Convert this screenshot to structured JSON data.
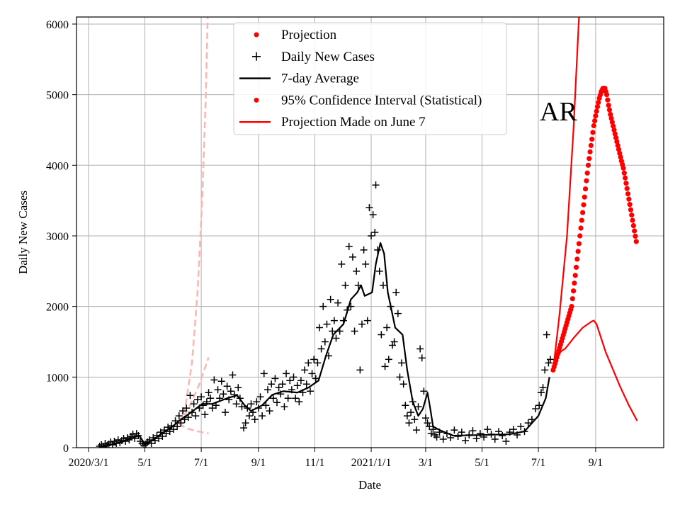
{
  "chart_data": {
    "type": "line",
    "title": "",
    "annotation": "AR",
    "xlabel": "Date",
    "ylabel": "Daily New Cases",
    "x_unit": "days since 2020/3/1",
    "xlim": [
      -13,
      623
    ],
    "ylim": [
      0,
      6100
    ],
    "grid": true,
    "legend_placement": "top-center",
    "x_ticks": [
      {
        "day": 0,
        "label": "2020/3/1"
      },
      {
        "day": 61,
        "label": "5/1"
      },
      {
        "day": 122,
        "label": "7/1"
      },
      {
        "day": 184,
        "label": "9/1"
      },
      {
        "day": 245,
        "label": "11/1"
      },
      {
        "day": 306,
        "label": "2021/1/1"
      },
      {
        "day": 365,
        "label": "3/1"
      },
      {
        "day": 426,
        "label": "5/1"
      },
      {
        "day": 487,
        "label": "7/1"
      },
      {
        "day": 549,
        "label": "9/1"
      }
    ],
    "y_ticks": [
      0,
      1000,
      2000,
      3000,
      4000,
      5000,
      6000
    ],
    "legend": [
      {
        "label": "Projection",
        "marker": "dot",
        "color": "#ff0000"
      },
      {
        "label": "Daily New Cases",
        "marker": "plus",
        "color": "#000000"
      },
      {
        "label": "7-day Average",
        "marker": "line",
        "color": "#000000"
      },
      {
        "label": "95% Confidence Interval (Statistical)",
        "marker": "dot",
        "color": "#ff0000"
      },
      {
        "label": "Projection Made on June 7",
        "marker": "line",
        "color": "#ff0000"
      }
    ],
    "series": {
      "daily_new_cases": [
        [
          12,
          20
        ],
        [
          14,
          40
        ],
        [
          16,
          10
        ],
        [
          18,
          60
        ],
        [
          20,
          30
        ],
        [
          22,
          50
        ],
        [
          24,
          80
        ],
        [
          26,
          40
        ],
        [
          28,
          90
        ],
        [
          30,
          60
        ],
        [
          32,
          110
        ],
        [
          34,
          70
        ],
        [
          36,
          100
        ],
        [
          38,
          130
        ],
        [
          40,
          90
        ],
        [
          42,
          140
        ],
        [
          44,
          110
        ],
        [
          46,
          160
        ],
        [
          48,
          190
        ],
        [
          50,
          130
        ],
        [
          52,
          200
        ],
        [
          54,
          170
        ],
        [
          56,
          90
        ],
        [
          58,
          60
        ],
        [
          60,
          30
        ],
        [
          62,
          50
        ],
        [
          64,
          80
        ],
        [
          66,
          110
        ],
        [
          68,
          60
        ],
        [
          70,
          140
        ],
        [
          72,
          100
        ],
        [
          74,
          170
        ],
        [
          76,
          130
        ],
        [
          78,
          220
        ],
        [
          80,
          160
        ],
        [
          82,
          250
        ],
        [
          84,
          200
        ],
        [
          86,
          290
        ],
        [
          88,
          230
        ],
        [
          90,
          310
        ],
        [
          92,
          260
        ],
        [
          94,
          380
        ],
        [
          96,
          300
        ],
        [
          98,
          450
        ],
        [
          100,
          350
        ],
        [
          102,
          520
        ],
        [
          104,
          400
        ],
        [
          106,
          560
        ],
        [
          108,
          430
        ],
        [
          110,
          740
        ],
        [
          112,
          500
        ],
        [
          114,
          620
        ],
        [
          116,
          450
        ],
        [
          118,
          680
        ],
        [
          120,
          560
        ],
        [
          122,
          720
        ],
        [
          124,
          600
        ],
        [
          126,
          470
        ],
        [
          128,
          650
        ],
        [
          130,
          780
        ],
        [
          132,
          700
        ],
        [
          134,
          560
        ],
        [
          136,
          960
        ],
        [
          138,
          600
        ],
        [
          140,
          820
        ],
        [
          142,
          700
        ],
        [
          144,
          940
        ],
        [
          146,
          760
        ],
        [
          148,
          500
        ],
        [
          150,
          870
        ],
        [
          152,
          680
        ],
        [
          154,
          800
        ],
        [
          156,
          1030
        ],
        [
          158,
          750
        ],
        [
          160,
          620
        ],
        [
          162,
          850
        ],
        [
          164,
          700
        ],
        [
          166,
          580
        ],
        [
          168,
          280
        ],
        [
          170,
          350
        ],
        [
          172,
          560
        ],
        [
          174,
          450
        ],
        [
          176,
          620
        ],
        [
          178,
          500
        ],
        [
          180,
          400
        ],
        [
          182,
          650
        ],
        [
          184,
          560
        ],
        [
          186,
          720
        ],
        [
          188,
          450
        ],
        [
          190,
          1050
        ],
        [
          192,
          600
        ],
        [
          194,
          820
        ],
        [
          196,
          520
        ],
        [
          198,
          900
        ],
        [
          200,
          700
        ],
        [
          202,
          980
        ],
        [
          204,
          640
        ],
        [
          206,
          850
        ],
        [
          208,
          760
        ],
        [
          210,
          900
        ],
        [
          212,
          580
        ],
        [
          214,
          1050
        ],
        [
          216,
          700
        ],
        [
          218,
          950
        ],
        [
          220,
          820
        ],
        [
          222,
          1000
        ],
        [
          224,
          700
        ],
        [
          226,
          880
        ],
        [
          228,
          650
        ],
        [
          230,
          950
        ],
        [
          232,
          780
        ],
        [
          234,
          1100
        ],
        [
          236,
          900
        ],
        [
          238,
          1200
        ],
        [
          240,
          800
        ],
        [
          242,
          1050
        ],
        [
          244,
          1250
        ],
        [
          246,
          980
        ],
        [
          248,
          1200
        ],
        [
          250,
          1700
        ],
        [
          252,
          1400
        ],
        [
          254,
          2000
        ],
        [
          256,
          1500
        ],
        [
          258,
          1750
        ],
        [
          260,
          1300
        ],
        [
          262,
          2100
        ],
        [
          264,
          1650
        ],
        [
          266,
          1800
        ],
        [
          268,
          1550
        ],
        [
          270,
          2050
        ],
        [
          272,
          1650
        ],
        [
          274,
          2600
        ],
        [
          276,
          1800
        ],
        [
          278,
          2300
        ],
        [
          280,
          1950
        ],
        [
          282,
          2850
        ],
        [
          284,
          2000
        ],
        [
          286,
          2700
        ],
        [
          288,
          1650
        ],
        [
          290,
          2500
        ],
        [
          292,
          2300
        ],
        [
          294,
          1100
        ],
        [
          296,
          1750
        ],
        [
          298,
          2800
        ],
        [
          300,
          2600
        ],
        [
          302,
          1800
        ],
        [
          304,
          3400
        ],
        [
          306,
          3000
        ],
        [
          308,
          3300
        ],
        [
          310,
          3050
        ],
        [
          311,
          3720
        ],
        [
          313,
          2800
        ],
        [
          315,
          2500
        ],
        [
          317,
          1600
        ],
        [
          319,
          2300
        ],
        [
          321,
          1150
        ],
        [
          323,
          1700
        ],
        [
          325,
          1250
        ],
        [
          327,
          2000
        ],
        [
          329,
          1450
        ],
        [
          331,
          1500
        ],
        [
          333,
          2200
        ],
        [
          335,
          1900
        ],
        [
          337,
          1000
        ],
        [
          339,
          1200
        ],
        [
          341,
          900
        ],
        [
          343,
          600
        ],
        [
          345,
          450
        ],
        [
          347,
          350
        ],
        [
          349,
          500
        ],
        [
          351,
          650
        ],
        [
          353,
          400
        ],
        [
          355,
          250
        ],
        [
          357,
          580
        ],
        [
          359,
          1400
        ],
        [
          361,
          1270
        ],
        [
          363,
          800
        ],
        [
          365,
          420
        ],
        [
          367,
          350
        ],
        [
          369,
          300
        ],
        [
          371,
          200
        ],
        [
          373,
          260
        ],
        [
          375,
          180
        ],
        [
          377,
          150
        ],
        [
          380,
          220
        ],
        [
          384,
          120
        ],
        [
          388,
          200
        ],
        [
          392,
          140
        ],
        [
          396,
          250
        ],
        [
          400,
          160
        ],
        [
          404,
          220
        ],
        [
          408,
          100
        ],
        [
          412,
          180
        ],
        [
          416,
          240
        ],
        [
          420,
          130
        ],
        [
          424,
          200
        ],
        [
          428,
          150
        ],
        [
          432,
          260
        ],
        [
          436,
          190
        ],
        [
          440,
          120
        ],
        [
          444,
          230
        ],
        [
          448,
          170
        ],
        [
          452,
          90
        ],
        [
          456,
          220
        ],
        [
          460,
          260
        ],
        [
          464,
          180
        ],
        [
          468,
          300
        ],
        [
          472,
          230
        ],
        [
          476,
          350
        ],
        [
          480,
          400
        ],
        [
          484,
          550
        ],
        [
          488,
          600
        ],
        [
          490,
          780
        ],
        [
          492,
          850
        ],
        [
          494,
          1100
        ],
        [
          496,
          1600
        ],
        [
          498,
          1200
        ],
        [
          500,
          1250
        ]
      ],
      "seven_day_average": [
        [
          11,
          0
        ],
        [
          30,
          60
        ],
        [
          50,
          150
        ],
        [
          55,
          170
        ],
        [
          61,
          50
        ],
        [
          70,
          110
        ],
        [
          79,
          200
        ],
        [
          90,
          290
        ],
        [
          100,
          400
        ],
        [
          111,
          500
        ],
        [
          123,
          620
        ],
        [
          134,
          620
        ],
        [
          150,
          700
        ],
        [
          161,
          740
        ],
        [
          169,
          600
        ],
        [
          176,
          520
        ],
        [
          188,
          600
        ],
        [
          199,
          750
        ],
        [
          211,
          800
        ],
        [
          226,
          780
        ],
        [
          238,
          850
        ],
        [
          249,
          950
        ],
        [
          257,
          1300
        ],
        [
          265,
          1600
        ],
        [
          276,
          1750
        ],
        [
          284,
          2100
        ],
        [
          291,
          2200
        ],
        [
          295,
          2300
        ],
        [
          299,
          2150
        ],
        [
          307,
          2200
        ],
        [
          311,
          2600
        ],
        [
          316,
          2900
        ],
        [
          320,
          2750
        ],
        [
          324,
          2200
        ],
        [
          332,
          1700
        ],
        [
          340,
          1600
        ],
        [
          345,
          1100
        ],
        [
          351,
          650
        ],
        [
          357,
          450
        ],
        [
          362,
          550
        ],
        [
          367,
          780
        ],
        [
          370,
          550
        ],
        [
          373,
          300
        ],
        [
          380,
          250
        ],
        [
          395,
          170
        ],
        [
          426,
          180
        ],
        [
          456,
          190
        ],
        [
          472,
          230
        ],
        [
          487,
          450
        ],
        [
          495,
          700
        ],
        [
          499,
          1000
        ]
      ],
      "projection": [
        [
          503,
          1100
        ],
        [
          505,
          1190
        ],
        [
          507,
          1280
        ],
        [
          509,
          1370
        ],
        [
          511,
          1460
        ],
        [
          513,
          1550
        ],
        [
          515,
          1640
        ],
        [
          517,
          1730
        ],
        [
          519,
          1820
        ],
        [
          521,
          1910
        ],
        [
          523,
          2000
        ],
        [
          525,
          2220
        ],
        [
          527,
          2440
        ],
        [
          529,
          2670
        ],
        [
          531,
          2890
        ],
        [
          533,
          3110
        ],
        [
          535,
          3330
        ],
        [
          537,
          3550
        ],
        [
          539,
          3780
        ],
        [
          541,
          4000
        ],
        [
          543,
          4190
        ],
        [
          545,
          4370
        ],
        [
          547,
          4560
        ],
        [
          549,
          4700
        ],
        [
          551,
          4830
        ],
        [
          553,
          4950
        ],
        [
          555,
          5040
        ],
        [
          557,
          5090
        ],
        [
          559,
          5090
        ],
        [
          561,
          5000
        ],
        [
          563,
          4850
        ],
        [
          565,
          4720
        ],
        [
          567,
          4610
        ],
        [
          569,
          4500
        ],
        [
          571,
          4390
        ],
        [
          573,
          4280
        ],
        [
          575,
          4170
        ],
        [
          577,
          4060
        ],
        [
          579,
          3960
        ],
        [
          581,
          3820
        ],
        [
          583,
          3670
        ],
        [
          585,
          3520
        ],
        [
          587,
          3370
        ],
        [
          589,
          3220
        ],
        [
          591,
          3070
        ],
        [
          593,
          2920
        ]
      ],
      "june7_projection_upper": [
        [
          503,
          1100
        ],
        [
          510,
          1900
        ],
        [
          518,
          3000
        ],
        [
          525,
          4500
        ],
        [
          531,
          6100
        ],
        [
          533,
          6500
        ]
      ],
      "june7_projection_lower": [
        [
          503,
          1100
        ],
        [
          508,
          1300
        ],
        [
          512,
          1370
        ],
        [
          516,
          1400
        ],
        [
          525,
          1550
        ],
        [
          535,
          1700
        ],
        [
          545,
          1790
        ],
        [
          547,
          1800
        ],
        [
          550,
          1750
        ],
        [
          555,
          1550
        ],
        [
          560,
          1350
        ],
        [
          568,
          1100
        ],
        [
          575,
          880
        ],
        [
          585,
          600
        ],
        [
          594,
          380
        ]
      ],
      "earlier_projection_upper": [
        [
          98,
          340
        ],
        [
          105,
          600
        ],
        [
          112,
          1200
        ],
        [
          118,
          2200
        ],
        [
          123,
          3500
        ],
        [
          127,
          5000
        ],
        [
          129,
          6100
        ],
        [
          130,
          6600
        ]
      ],
      "earlier_projection_mid": [
        [
          98,
          340
        ],
        [
          110,
          600
        ],
        [
          120,
          900
        ],
        [
          130,
          1280
        ]
      ],
      "earlier_projection_lower": [
        [
          98,
          340
        ],
        [
          105,
          280
        ],
        [
          115,
          240
        ],
        [
          130,
          200
        ]
      ]
    }
  }
}
